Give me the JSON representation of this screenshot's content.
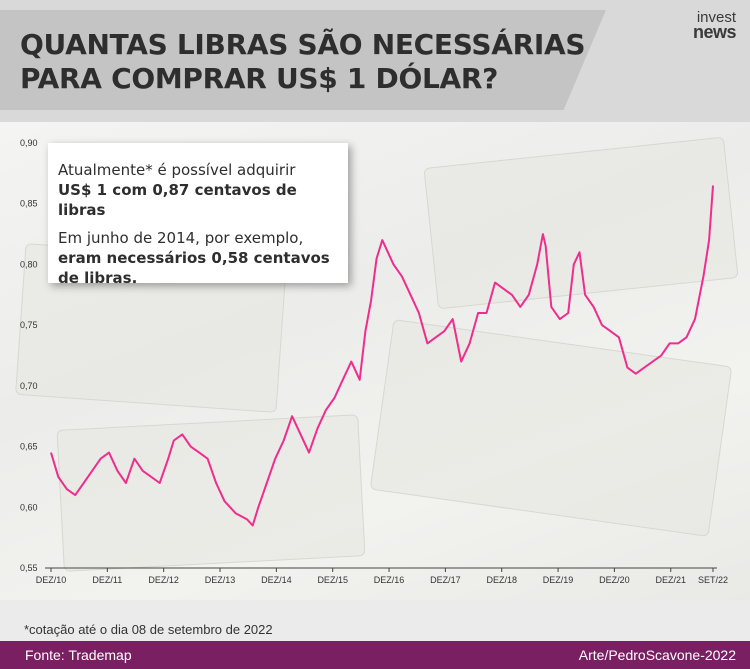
{
  "header": {
    "title_line1": "QUANTAS LIBRAS SÃO NECESSÁRIAS",
    "title_line2": "PARA COMPRAR US$ 1 DÓLAR?",
    "logo_line1": "invest",
    "logo_line2": "news"
  },
  "callout": {
    "line1": "Atualmente* é possível adquirir",
    "line2_bold": "US$ 1 com 0,87 centavos de libras",
    "line3": "Em junho de 2014, por exemplo,",
    "line4_bold": "eram necessários 0,58 centavos",
    "line5_bold": "de libras."
  },
  "footnote": "*cotação até o dia 08 de setembro de 2022",
  "footer": {
    "source": "Fonte: Trademap",
    "credit": "Arte/PedroScavone-2022"
  },
  "colors": {
    "line": "#ee2d8e",
    "footer_bg": "#7b1f63",
    "header_panel": "#c4c4c4"
  },
  "chart_data": {
    "type": "line",
    "title": "QUANTAS LIBRAS SÃO NECESSÁRIAS PARA COMPRAR US$ 1 DÓLAR?",
    "xlabel": "",
    "ylabel": "",
    "ylim": [
      0.55,
      0.9
    ],
    "y_ticks": [
      "0,55",
      "0,60",
      "0,65",
      "0,70",
      "0,75",
      "0,80",
      "0,85",
      "0,90"
    ],
    "y_tick_values": [
      0.55,
      0.6,
      0.65,
      0.7,
      0.75,
      0.8,
      0.85,
      0.9
    ],
    "x_ticks": [
      "DEZ/10",
      "DEZ/11",
      "DEZ/12",
      "DEZ/13",
      "DEZ/14",
      "DEZ/15",
      "DEZ/16",
      "DEZ/17",
      "DEZ/18",
      "DEZ/19",
      "DEZ/20",
      "DEZ/21",
      "SET/22"
    ],
    "x_tick_values": [
      2010.92,
      2011.92,
      2012.92,
      2013.92,
      2014.92,
      2015.92,
      2016.92,
      2017.92,
      2018.92,
      2019.92,
      2020.92,
      2021.92,
      2022.67
    ],
    "xlim": [
      2010.92,
      2022.67
    ],
    "grid": false,
    "series": [
      {
        "x": [
          2010.92,
          2011.05,
          2011.2,
          2011.35,
          2011.5,
          2011.65,
          2011.8,
          2011.95,
          2012.1,
          2012.25,
          2012.4,
          2012.55,
          2012.7,
          2012.85,
          2013.0,
          2013.1,
          2013.25,
          2013.4,
          2013.55,
          2013.7,
          2013.85,
          2014.0,
          2014.2,
          2014.4,
          2014.5,
          2014.6,
          2014.75,
          2014.9,
          2015.05,
          2015.2,
          2015.35,
          2015.5,
          2015.65,
          2015.8,
          2015.95,
          2016.1,
          2016.25,
          2016.4,
          2016.5,
          2016.6,
          2016.7,
          2016.8,
          2016.9,
          2017.0,
          2017.15,
          2017.3,
          2017.45,
          2017.6,
          2017.75,
          2017.9,
          2018.05,
          2018.2,
          2018.35,
          2018.5,
          2018.65,
          2018.8,
          2018.95,
          2019.1,
          2019.25,
          2019.4,
          2019.55,
          2019.65,
          2019.7,
          2019.8,
          2019.95,
          2020.1,
          2020.2,
          2020.3,
          2020.4,
          2020.55,
          2020.7,
          2020.85,
          2021.0,
          2021.15,
          2021.3,
          2021.45,
          2021.6,
          2021.75,
          2021.9,
          2022.05,
          2022.2,
          2022.35,
          2022.5,
          2022.6,
          2022.67
        ],
        "values": [
          0.645,
          0.625,
          0.615,
          0.61,
          0.62,
          0.63,
          0.64,
          0.645,
          0.63,
          0.62,
          0.64,
          0.63,
          0.625,
          0.62,
          0.64,
          0.655,
          0.66,
          0.65,
          0.645,
          0.64,
          0.62,
          0.605,
          0.595,
          0.59,
          0.585,
          0.6,
          0.62,
          0.64,
          0.655,
          0.675,
          0.66,
          0.645,
          0.665,
          0.68,
          0.69,
          0.705,
          0.72,
          0.705,
          0.745,
          0.77,
          0.805,
          0.82,
          0.81,
          0.8,
          0.79,
          0.775,
          0.76,
          0.735,
          0.74,
          0.745,
          0.755,
          0.72,
          0.735,
          0.76,
          0.76,
          0.785,
          0.78,
          0.775,
          0.765,
          0.775,
          0.8,
          0.825,
          0.815,
          0.765,
          0.755,
          0.76,
          0.8,
          0.81,
          0.775,
          0.765,
          0.75,
          0.745,
          0.74,
          0.715,
          0.71,
          0.715,
          0.72,
          0.725,
          0.735,
          0.735,
          0.74,
          0.755,
          0.79,
          0.82,
          0.865
        ]
      }
    ]
  }
}
